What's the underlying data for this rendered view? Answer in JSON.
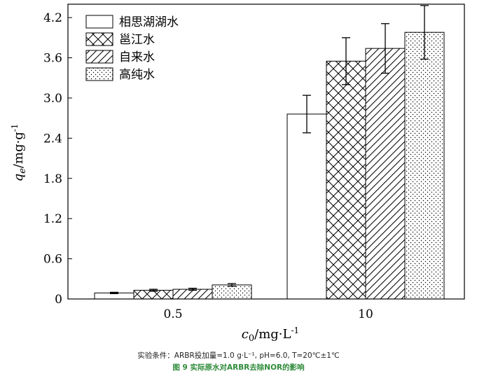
{
  "chart_data": {
    "type": "bar",
    "categories": [
      "0.5",
      "10"
    ],
    "series": [
      {
        "name": "相思湖湖水",
        "pattern": "blank",
        "values": [
          0.09,
          2.76
        ],
        "errors": [
          0.01,
          0.28
        ]
      },
      {
        "name": "邕江水",
        "pattern": "crosshatch",
        "values": [
          0.13,
          3.55
        ],
        "errors": [
          0.015,
          0.35
        ]
      },
      {
        "name": "自来水",
        "pattern": "diagonal",
        "values": [
          0.145,
          3.74
        ],
        "errors": [
          0.015,
          0.37
        ]
      },
      {
        "name": "高纯水",
        "pattern": "dots",
        "values": [
          0.21,
          3.98
        ],
        "errors": [
          0.02,
          0.4
        ]
      }
    ],
    "ylim": [
      0,
      4.4
    ],
    "yticks": [
      "0",
      "0.6",
      "1.2",
      "1.8",
      "2.4",
      "3.0",
      "3.6",
      "4.2"
    ],
    "ylabel": {
      "q": "q",
      "sub": "e",
      "unit": "/mg·g",
      "sup": "-1"
    },
    "xlabel": {
      "c": "c",
      "sub": "0",
      "unit": "/mg·L",
      "sup": "-1"
    },
    "legend_position": "top-left"
  },
  "caption": {
    "conditions": "实验条件：ARBR投加量=1.0 g·L⁻¹, pH=6.0, T=20℃±1℃",
    "fig_no": "图 9",
    "title": "实际原水对ARBR去除NOR的影响"
  }
}
